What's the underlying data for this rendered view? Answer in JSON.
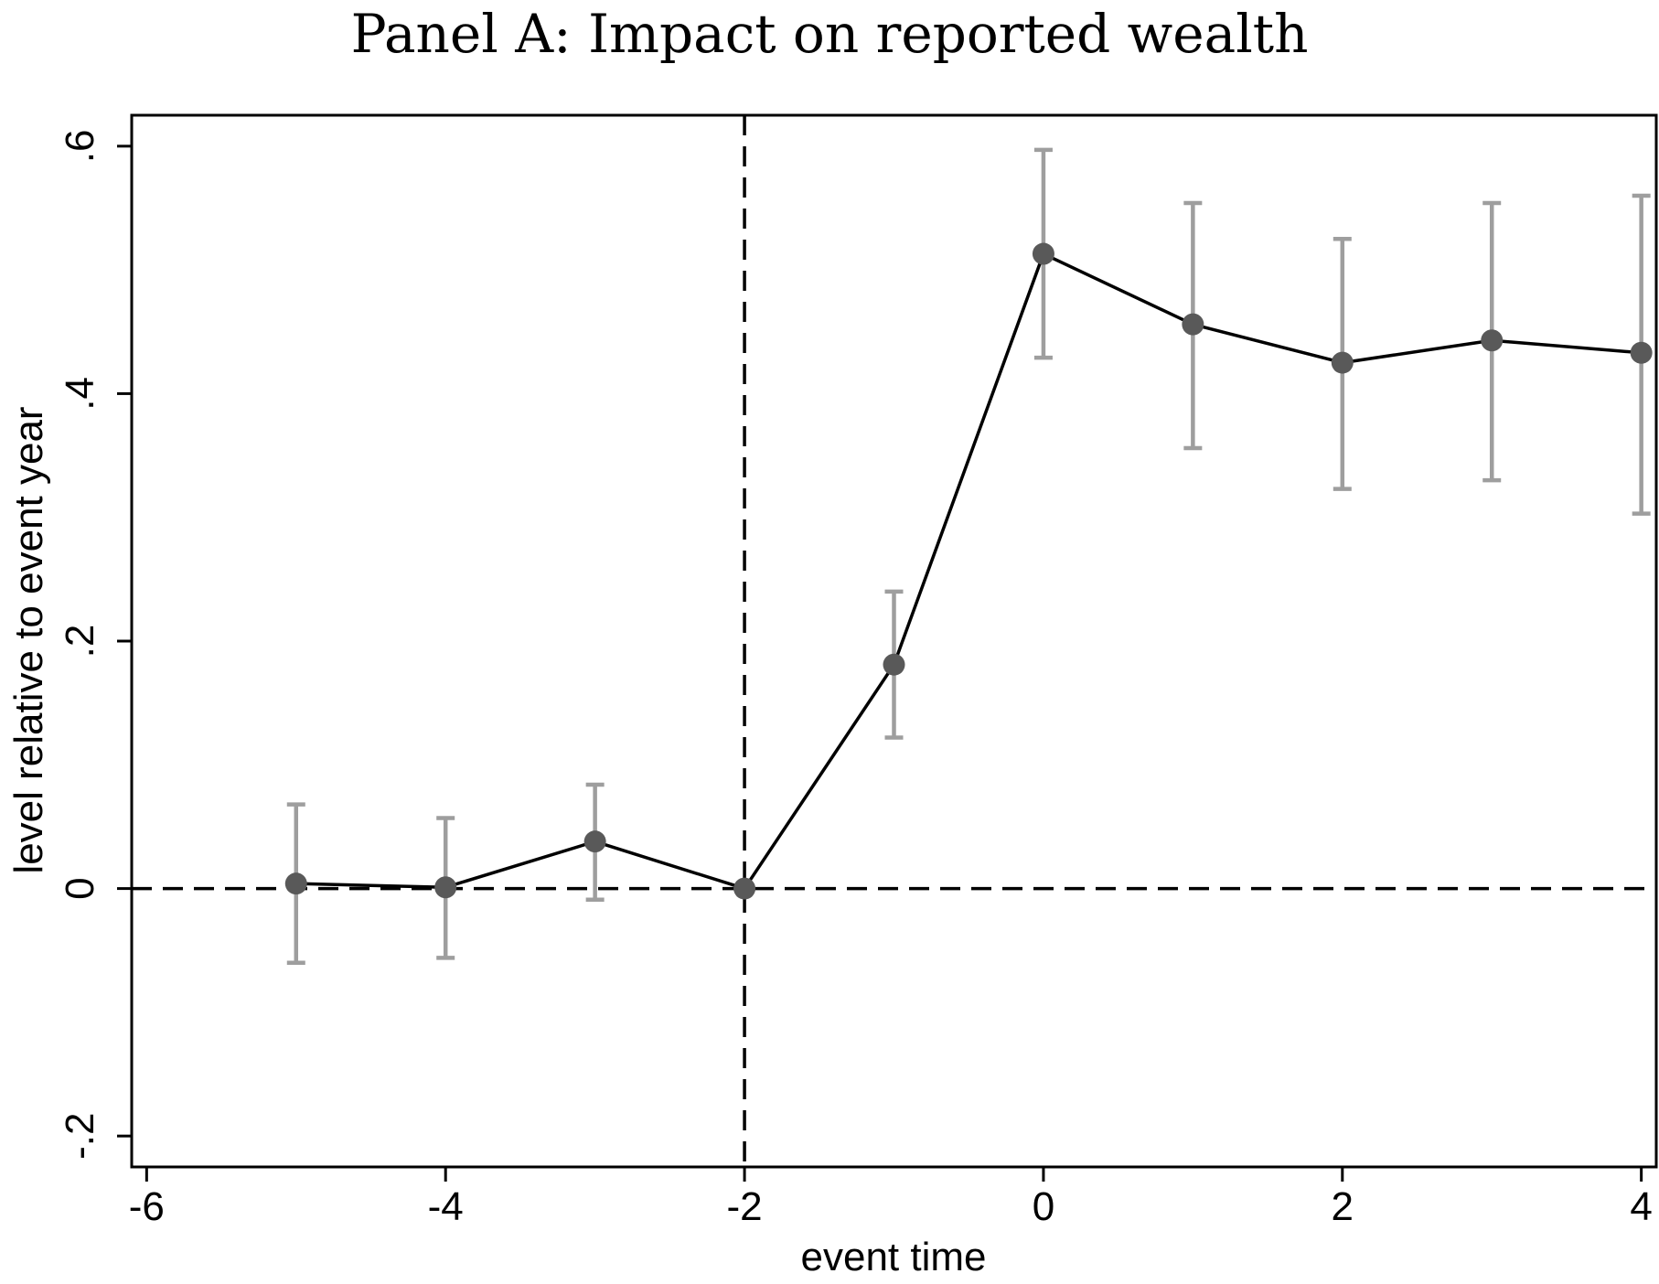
{
  "chart_data": {
    "type": "line",
    "title": "Panel A: Impact on reported wealth",
    "xlabel": "event time",
    "ylabel": "level relative to event year",
    "xlim": [
      -6.1,
      4.1
    ],
    "ylim": [
      -0.225,
      0.625
    ],
    "x_ticks": [
      -6,
      -4,
      -2,
      0,
      2,
      4
    ],
    "x_tick_labels": [
      "-6",
      "-4",
      "-2",
      "0",
      "2",
      "4"
    ],
    "y_ticks": [
      -0.2,
      0,
      0.2,
      0.4,
      0.6
    ],
    "y_tick_labels": [
      "-.2",
      "0",
      ".2",
      ".4",
      ".6"
    ],
    "grid": false,
    "reference_lines": {
      "vertical_x": -2,
      "horizontal_y": 0,
      "style": "dashed"
    },
    "series": [
      {
        "x": [
          -5,
          -4,
          -3,
          -2,
          -1,
          0,
          1,
          2,
          3,
          4
        ],
        "values": [
          0.004,
          0.001,
          0.038,
          0.0,
          0.181,
          0.513,
          0.456,
          0.425,
          0.443,
          0.433
        ],
        "ci_low": [
          -0.06,
          -0.056,
          -0.009,
          0.0,
          0.122,
          0.429,
          0.356,
          0.323,
          0.33,
          0.303
        ],
        "ci_high": [
          0.068,
          0.057,
          0.084,
          0.0,
          0.24,
          0.597,
          0.554,
          0.525,
          0.554,
          0.56
        ],
        "line_color": "#000000",
        "marker_color": "#595959",
        "errorbar_color": "#9e9e9e"
      }
    ]
  }
}
